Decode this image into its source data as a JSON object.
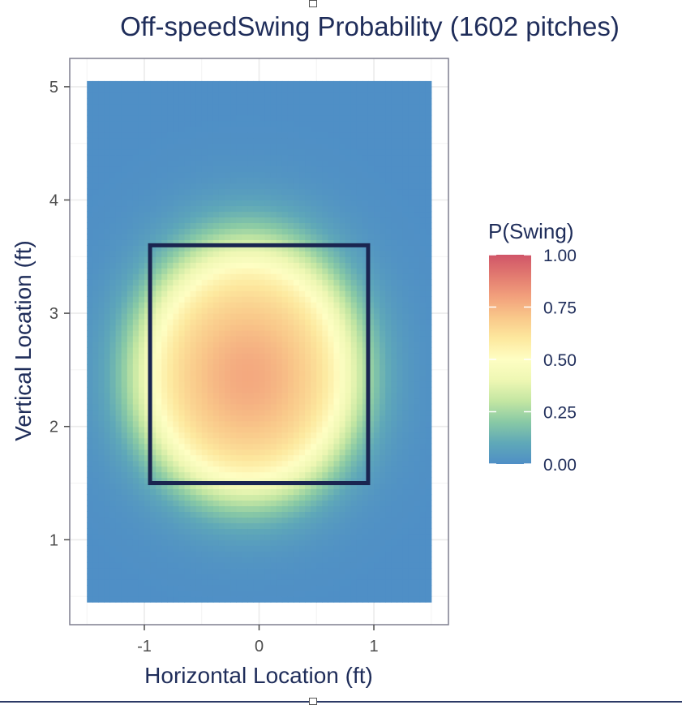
{
  "chart_data": {
    "type": "heatmap",
    "title": "Off-speedSwing Probability (1602 pitches)",
    "xlabel": "Horizontal Location (ft)",
    "ylabel": "Vertical Location (ft)",
    "xlim": [
      -1.65,
      1.65
    ],
    "ylim": [
      0.25,
      5.25
    ],
    "x_data_range": [
      -1.5,
      1.5
    ],
    "y_data_range": [
      0.45,
      5.05
    ],
    "x_ticks": [
      {
        "value": -1,
        "label": "-1"
      },
      {
        "value": 0,
        "label": "0"
      },
      {
        "value": 1,
        "label": "1"
      }
    ],
    "y_ticks": [
      {
        "value": 1,
        "label": "1"
      },
      {
        "value": 2,
        "label": "2"
      },
      {
        "value": 3,
        "label": "3"
      },
      {
        "value": 4,
        "label": "4"
      },
      {
        "value": 5,
        "label": "5"
      }
    ],
    "strike_zone": {
      "x_min": -0.95,
      "x_max": 0.95,
      "y_min": 1.5,
      "y_max": 3.6
    },
    "peak": {
      "x": -0.1,
      "y": 2.45,
      "value": 0.78
    },
    "grid": true,
    "legend": {
      "title": "P(Swing)",
      "position": "right",
      "range": [
        0,
        1
      ],
      "ticks": [
        {
          "value": 1.0,
          "label": "1.00"
        },
        {
          "value": 0.75,
          "label": "0.75"
        },
        {
          "value": 0.5,
          "label": "0.50"
        },
        {
          "value": 0.25,
          "label": "0.25"
        },
        {
          "value": 0.0,
          "label": "0.00"
        }
      ],
      "color_stops": [
        {
          "value": 0.0,
          "color": "#4f8fc6"
        },
        {
          "value": 0.1,
          "color": "#5fa8b8"
        },
        {
          "value": 0.2,
          "color": "#88c9a5"
        },
        {
          "value": 0.3,
          "color": "#c3e6a2"
        },
        {
          "value": 0.4,
          "color": "#eef7b3"
        },
        {
          "value": 0.5,
          "color": "#fefec3"
        },
        {
          "value": 0.6,
          "color": "#fde89e"
        },
        {
          "value": 0.7,
          "color": "#f9c88a"
        },
        {
          "value": 0.8,
          "color": "#f2a07c"
        },
        {
          "value": 0.9,
          "color": "#e27a70"
        },
        {
          "value": 1.0,
          "color": "#d05568"
        }
      ]
    }
  }
}
